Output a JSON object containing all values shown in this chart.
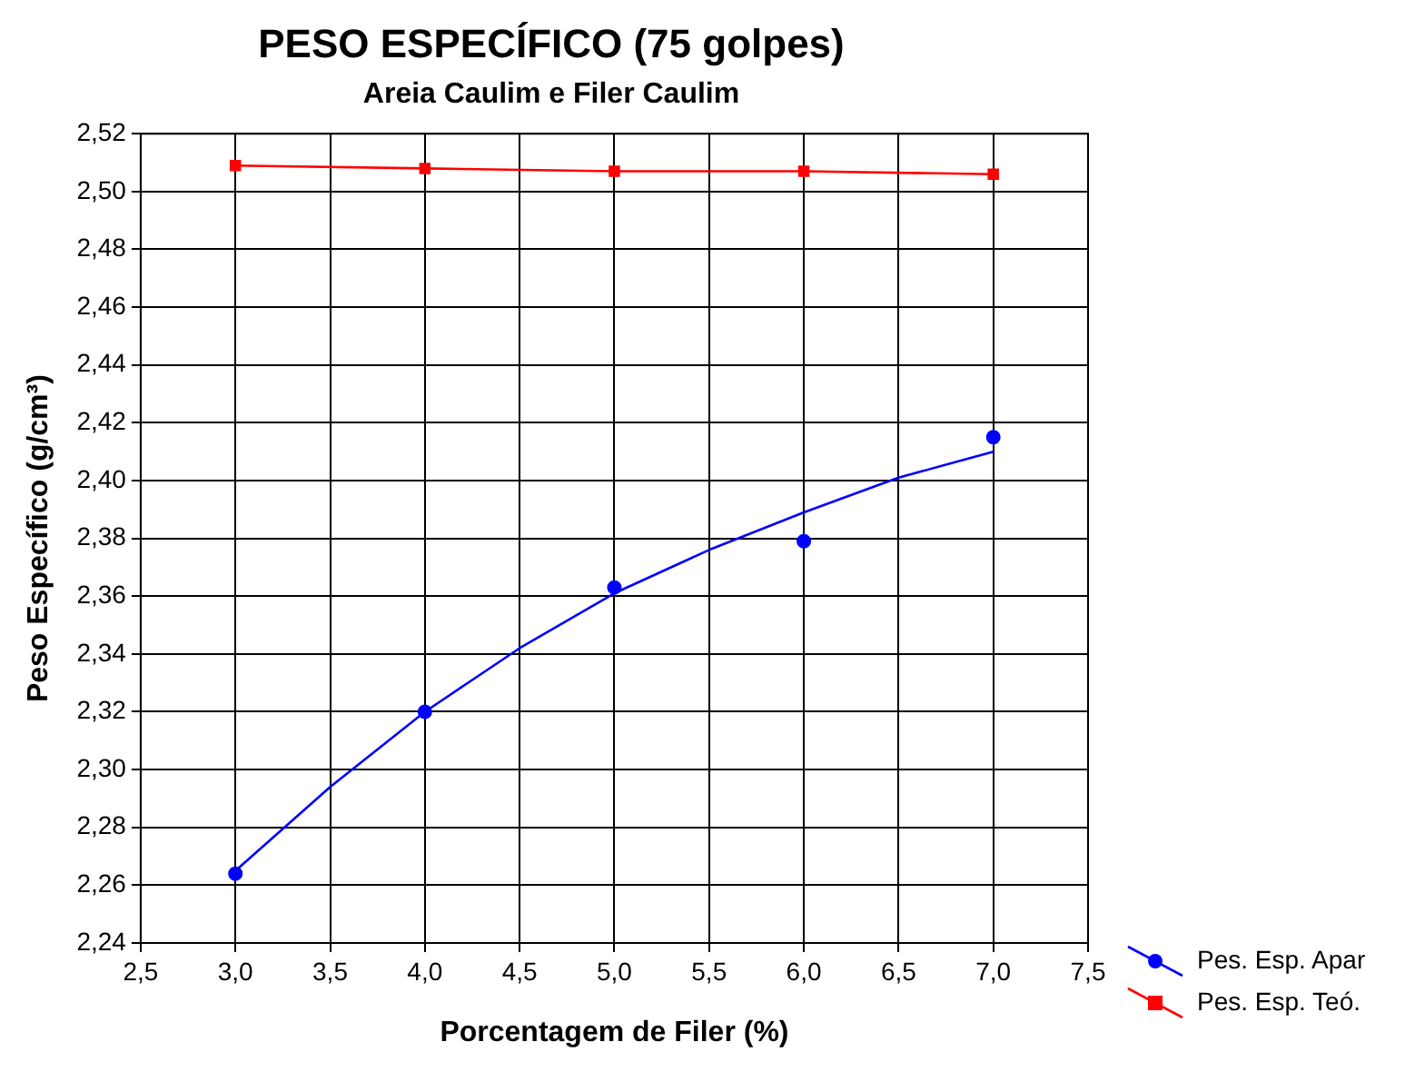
{
  "chart_data": {
    "type": "scatter",
    "title": "PESO ESPECÍFICO (75 golpes)",
    "subtitle": "Areia Caulim e Filer Caulim",
    "xlabel": "Porcentagem de Filer (%)",
    "ylabel": "Peso Específico (g/cm³)",
    "xlim": [
      2.5,
      7.5
    ],
    "xticks": [
      {
        "value": 2.5,
        "label": "2,5"
      },
      {
        "value": 3,
        "label": "3,0"
      },
      {
        "value": 3.5,
        "label": "3,5"
      },
      {
        "value": 4,
        "label": "4,0"
      },
      {
        "value": 4.5,
        "label": "4,5"
      },
      {
        "value": 5,
        "label": "5,0"
      },
      {
        "value": 5.5,
        "label": "5,5"
      },
      {
        "value": 6,
        "label": "6,0"
      },
      {
        "value": 6.5,
        "label": "6,5"
      },
      {
        "value": 7,
        "label": "7,0"
      },
      {
        "value": 7.5,
        "label": "7,5"
      }
    ],
    "ylim": [
      2.24,
      2.52
    ],
    "yticks": [
      {
        "value": 2.24,
        "label": "2,24"
      },
      {
        "value": 2.26,
        "label": "2,26"
      },
      {
        "value": 2.28,
        "label": "2,28"
      },
      {
        "value": 2.3,
        "label": "2,30"
      },
      {
        "value": 2.32,
        "label": "2,32"
      },
      {
        "value": 2.34,
        "label": "2,34"
      },
      {
        "value": 2.36,
        "label": "2,36"
      },
      {
        "value": 2.38,
        "label": "2,38"
      },
      {
        "value": 2.4,
        "label": "2,40"
      },
      {
        "value": 2.42,
        "label": "2,42"
      },
      {
        "value": 2.44,
        "label": "2,44"
      },
      {
        "value": 2.46,
        "label": "2,46"
      },
      {
        "value": 2.48,
        "label": "2,48"
      },
      {
        "value": 2.5,
        "label": "2,50"
      },
      {
        "value": 2.52,
        "label": "2,52"
      }
    ],
    "grid": true,
    "legend": "bottom right",
    "series": [
      {
        "name": "Pes. Esp. Apar",
        "marker": "circle",
        "color": "#0000ff",
        "x": [
          3,
          4,
          5,
          6,
          7
        ],
        "values": [
          2.264,
          2.32,
          2.363,
          2.379,
          2.415
        ]
      },
      {
        "type": "line",
        "marker": "none",
        "color": "#0000ff",
        "x": [
          3,
          3.5,
          4,
          4.5,
          5,
          5.5,
          6,
          6.5,
          7
        ],
        "values": [
          2.265,
          2.294,
          2.32,
          2.342,
          2.361,
          2.376,
          2.389,
          2.401,
          2.41
        ]
      },
      {
        "name": "Pes. Esp. Teó.",
        "type": "line",
        "marker": "square",
        "color": "#ff0000",
        "x": [
          3,
          4,
          5,
          6,
          7
        ],
        "values": [
          2.509,
          2.508,
          2.507,
          2.507,
          2.506
        ]
      }
    ]
  }
}
